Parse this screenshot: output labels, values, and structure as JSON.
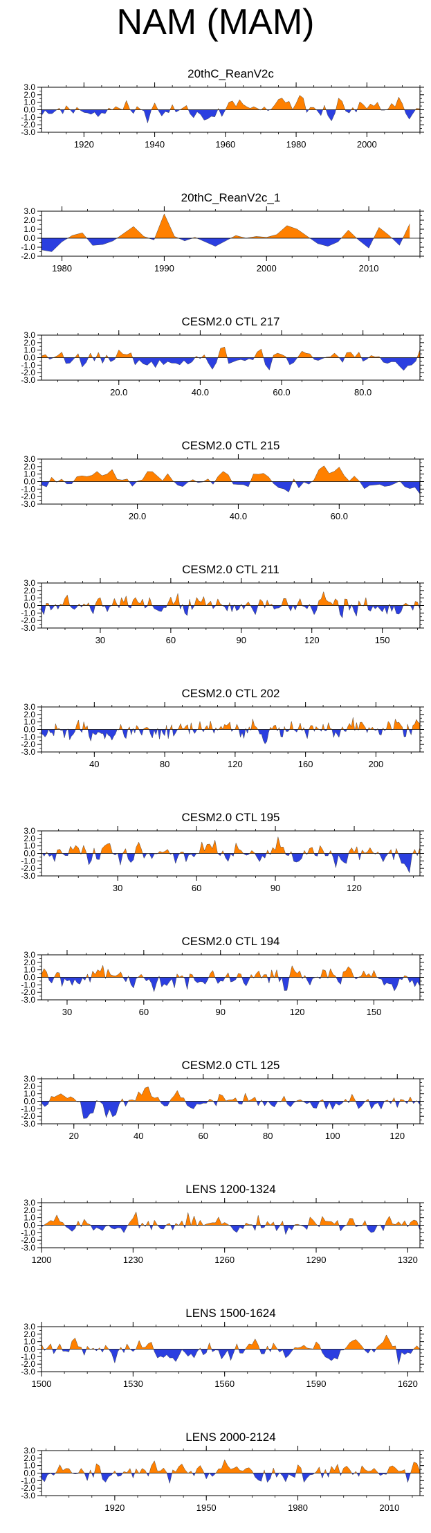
{
  "title": "NAM (MAM)",
  "colors": {
    "positive": "#ff8000",
    "negative": "#2b3fe0",
    "axis": "#000000"
  },
  "chart_data": [
    {
      "type": "area",
      "title": "20thC_ReanV2c",
      "xlim": [
        1908,
        2015
      ],
      "ylim": [
        -3,
        3
      ],
      "xticks": [
        1920,
        1940,
        1960,
        1980,
        2000
      ],
      "xtick_labels": [
        "1920",
        "1940",
        "1960",
        "1980",
        "2000"
      ],
      "yticks": [
        3,
        2,
        1,
        0,
        -1,
        -2,
        -3
      ],
      "ytick_labels": [
        "3.0",
        "2.0",
        "1.0",
        "0.0",
        "-1.0",
        "-2.0",
        "-3.0"
      ],
      "seed": 11
    },
    {
      "type": "area",
      "title": "20thC_ReanV2c_1",
      "xlim": [
        1978,
        2015
      ],
      "ylim": [
        -2,
        3
      ],
      "xticks": [
        1980,
        1990,
        2000,
        2010
      ],
      "xtick_labels": [
        "1980",
        "1990",
        "2000",
        "2010"
      ],
      "yticks": [
        3,
        2,
        1,
        0,
        -1,
        -2
      ],
      "ytick_labels": [
        "3.0",
        "2.0",
        "1.0",
        "0.0",
        "-1.0",
        "-2.0"
      ],
      "x": [
        1978,
        1979,
        1980,
        1981,
        1982,
        1983,
        1984,
        1985,
        1986,
        1987,
        1988,
        1989,
        1990,
        1991,
        1992,
        1993,
        1994,
        1995,
        1996,
        1997,
        1998,
        1999,
        2000,
        2001,
        2002,
        2003,
        2004,
        2005,
        2006,
        2007,
        2008,
        2009,
        2010,
        2011,
        2012,
        2013,
        2014
      ],
      "y": [
        -1.3,
        -1.5,
        -0.4,
        0.3,
        0.6,
        -0.8,
        -0.7,
        -0.3,
        0.5,
        1.3,
        0.2,
        -0.2,
        2.7,
        0.2,
        -0.3,
        0.1,
        -0.4,
        -0.9,
        -0.3,
        0.3,
        0.0,
        0.2,
        0.1,
        0.4,
        1.4,
        1.0,
        0.2,
        -0.6,
        -0.9,
        -0.4,
        0.9,
        -0.2,
        -1.1,
        1.2,
        0.3,
        -0.8,
        1.6
      ]
    },
    {
      "type": "area",
      "title": "CESM2.0 CTL 217",
      "xlim": [
        1,
        94
      ],
      "ylim": [
        -3,
        3
      ],
      "xticks": [
        20,
        40,
        60,
        80
      ],
      "xtick_labels": [
        "20.0",
        "40.0",
        "60.0",
        "80.0"
      ],
      "yticks": [
        3,
        2,
        1,
        0,
        -1,
        -2,
        -3
      ],
      "ytick_labels": [
        "3.0",
        "2.0",
        "1.0",
        "0.0",
        "-1.0",
        "-2.0",
        "-3.0"
      ],
      "seed": 217
    },
    {
      "type": "area",
      "title": "CESM2.0 CTL 215",
      "xlim": [
        1,
        76
      ],
      "ylim": [
        -3,
        3
      ],
      "xticks": [
        20,
        40,
        60
      ],
      "xtick_labels": [
        "20.0",
        "40.0",
        "60.0"
      ],
      "yticks": [
        3,
        2,
        1,
        0,
        -1,
        -2,
        -3
      ],
      "ytick_labels": [
        "3.0",
        "2.0",
        "1.0",
        "0.0",
        "-1.0",
        "-2.0",
        "-3.0"
      ],
      "seed": 215
    },
    {
      "type": "area",
      "title": "CESM2.0 CTL 211",
      "xlim": [
        5,
        166
      ],
      "ylim": [
        -3,
        3
      ],
      "xticks": [
        30,
        60,
        90,
        120,
        150
      ],
      "xtick_labels": [
        "30",
        "60",
        "90",
        "120",
        "150"
      ],
      "yticks": [
        3,
        2,
        1,
        0,
        -1,
        -2,
        -3
      ],
      "ytick_labels": [
        "3.0",
        "2.0",
        "1.0",
        "0.0",
        "-1.0",
        "-2.0",
        "-3.0"
      ],
      "seed": 211
    },
    {
      "type": "area",
      "title": "CESM2.0 CTL 202",
      "xlim": [
        10,
        225
      ],
      "ylim": [
        -3,
        3
      ],
      "xticks": [
        40,
        80,
        120,
        160,
        200
      ],
      "xtick_labels": [
        "40",
        "80",
        "120",
        "160",
        "200"
      ],
      "yticks": [
        3,
        2,
        1,
        0,
        -1,
        -2,
        -3
      ],
      "ytick_labels": [
        "3.0",
        "2.0",
        "1.0",
        "0.0",
        "-1.0",
        "-2.0",
        "-3.0"
      ],
      "seed": 202
    },
    {
      "type": "area",
      "title": "CESM2.0 CTL 195",
      "xlim": [
        1,
        145
      ],
      "ylim": [
        -3,
        3
      ],
      "xticks": [
        30,
        60,
        90,
        120
      ],
      "xtick_labels": [
        "30",
        "60",
        "90",
        "120"
      ],
      "yticks": [
        3,
        2,
        1,
        0,
        -1,
        -2,
        -3
      ],
      "ytick_labels": [
        "3.0",
        "2.0",
        "1.0",
        "0.0",
        "-1.0",
        "-2.0",
        "-3.0"
      ],
      "seed": 195
    },
    {
      "type": "area",
      "title": "CESM2.0 CTL 194",
      "xlim": [
        20,
        168
      ],
      "ylim": [
        -3,
        3
      ],
      "xticks": [
        30,
        60,
        90,
        120,
        150
      ],
      "xtick_labels": [
        "30",
        "60",
        "90",
        "120",
        "150"
      ],
      "yticks": [
        3,
        2,
        1,
        0,
        -1,
        -2,
        -3
      ],
      "ytick_labels": [
        "3.0",
        "2.0",
        "1.0",
        "0.0",
        "-1.0",
        "-2.0",
        "-3.0"
      ],
      "seed": 194
    },
    {
      "type": "area",
      "title": "CESM2.0 CTL 125",
      "xlim": [
        10,
        127
      ],
      "ylim": [
        -3,
        3
      ],
      "xticks": [
        20,
        40,
        60,
        80,
        100,
        120
      ],
      "xtick_labels": [
        "20",
        "40",
        "60",
        "80",
        "100",
        "120"
      ],
      "yticks": [
        3,
        2,
        1,
        0,
        -1,
        -2,
        -3
      ],
      "ytick_labels": [
        "3.0",
        "2.0",
        "1.0",
        "0.0",
        "-1.0",
        "-2.0",
        "-3.0"
      ],
      "seed": 125
    },
    {
      "type": "area",
      "title": "LENS 1200-1324",
      "xlim": [
        1200,
        1324
      ],
      "ylim": [
        -3,
        3
      ],
      "xticks": [
        1200,
        1230,
        1260,
        1290,
        1320
      ],
      "xtick_labels": [
        "1200",
        "1230",
        "1260",
        "1290",
        "1320"
      ],
      "yticks": [
        3,
        2,
        1,
        0,
        -1,
        -2,
        -3
      ],
      "ytick_labels": [
        "3.0",
        "2.0",
        "1.0",
        "0.0",
        "-1.0",
        "-2.0",
        "-3.0"
      ],
      "seed": 1200
    },
    {
      "type": "area",
      "title": "LENS 1500-1624",
      "xlim": [
        1500,
        1624
      ],
      "ylim": [
        -3,
        3
      ],
      "xticks": [
        1500,
        1530,
        1560,
        1590,
        1620
      ],
      "xtick_labels": [
        "1500",
        "1530",
        "1560",
        "1590",
        "1620"
      ],
      "yticks": [
        3,
        2,
        1,
        0,
        -1,
        -2,
        -3
      ],
      "ytick_labels": [
        "3.0",
        "2.0",
        "1.0",
        "0.0",
        "-1.0",
        "-2.0",
        "-3.0"
      ],
      "seed": 1500
    },
    {
      "type": "area",
      "title": "LENS 2000-2124",
      "xlim": [
        1896,
        2020
      ],
      "ylim": [
        -3,
        3
      ],
      "xticks": [
        1920,
        1950,
        1980,
        2010
      ],
      "xtick_labels": [
        "1920",
        "1950",
        "1980",
        "2010"
      ],
      "yticks": [
        3,
        2,
        1,
        0,
        -1,
        -2,
        -3
      ],
      "ytick_labels": [
        "3.0",
        "2.0",
        "1.0",
        "0.0",
        "-1.0",
        "-2.0",
        "-3.0"
      ],
      "seed": 2000
    }
  ]
}
